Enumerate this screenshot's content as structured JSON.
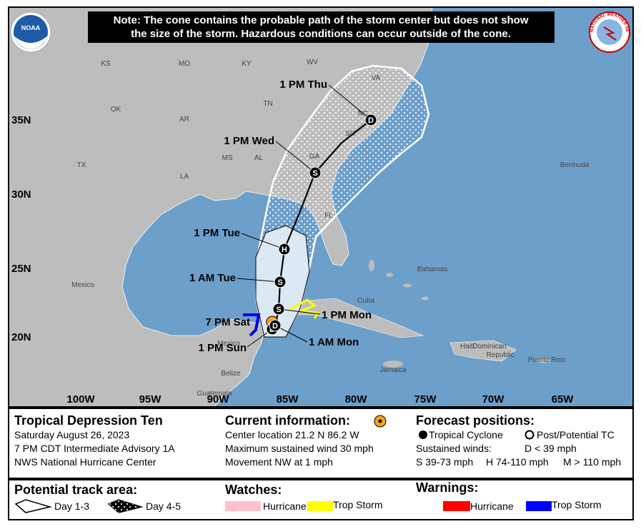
{
  "note": {
    "lines": [
      "Note: The cone contains the probable path of the storm center but does not show",
      "the size of the storm. Hazardous conditions can occur outside of the cone."
    ]
  },
  "logos": {
    "noaa": "NOAA",
    "nws": "NATIONAL WEATHER SERVICE"
  },
  "map": {
    "region_labels": [
      "KS",
      "MO",
      "KY",
      "WV",
      "VA",
      "OK",
      "AR",
      "TN",
      "NC",
      "SC",
      "TX",
      "MS",
      "AL",
      "GA",
      "LA",
      "FL",
      "Bermuda",
      "Mexico",
      "Cuba",
      "Bahamas",
      "Belize",
      "Guatemala",
      "Jamaica",
      "Haiti",
      "Dominican",
      "Republic",
      "Puerto Rico",
      "Mexico"
    ],
    "lat_labels": [
      "35N",
      "30N",
      "25N",
      "20N"
    ],
    "lon_labels": [
      "100W",
      "95W",
      "90W",
      "85W",
      "80W",
      "75W",
      "70W",
      "65W"
    ],
    "track_points": [
      {
        "time": "7 PM Sat",
        "symbol": null
      },
      {
        "time": "1 PM Sun",
        "symbol": "D"
      },
      {
        "time": "1 AM Mon",
        "symbol": "D"
      },
      {
        "time": "1 PM Mon",
        "symbol": "S"
      },
      {
        "time": "1 AM Tue",
        "symbol": "S"
      },
      {
        "time": "1 PM Tue",
        "symbol": "H"
      },
      {
        "time": "1 PM Wed",
        "symbol": "S"
      },
      {
        "time": "1 PM Thu",
        "symbol": "D"
      }
    ]
  },
  "legend": {
    "storm": {
      "title": "Tropical Depression Ten",
      "lines": [
        "Saturday August 26, 2023",
        "7 PM CDT Intermediate Advisory 1A",
        "NWS National Hurricane Center"
      ]
    },
    "current": {
      "title": "Current information:",
      "lines": [
        "Center location 21.2 N 86.2 W",
        "Maximum sustained wind 30 mph",
        "Movement NW at 1 mph"
      ]
    },
    "forecast": {
      "title": "Forecast positions:",
      "tropical": "Tropical Cyclone",
      "post": "Post/Potential TC",
      "winds": "Sustained winds:",
      "d": "D < 39 mph",
      "s": "S 39-73 mph",
      "h": "H 74-110 mph",
      "m": "M > 110 mph"
    },
    "track_area": {
      "title": "Potential track area:",
      "day13": "Day 1-3",
      "day45": "Day 4-5"
    },
    "watches": {
      "title": "Watches:",
      "hurricane": "Hurricane",
      "trop_storm": "Trop Storm"
    },
    "warnings": {
      "title": "Warnings:",
      "hurricane": "Hurricane",
      "trop_storm": "Trop Storm"
    }
  }
}
